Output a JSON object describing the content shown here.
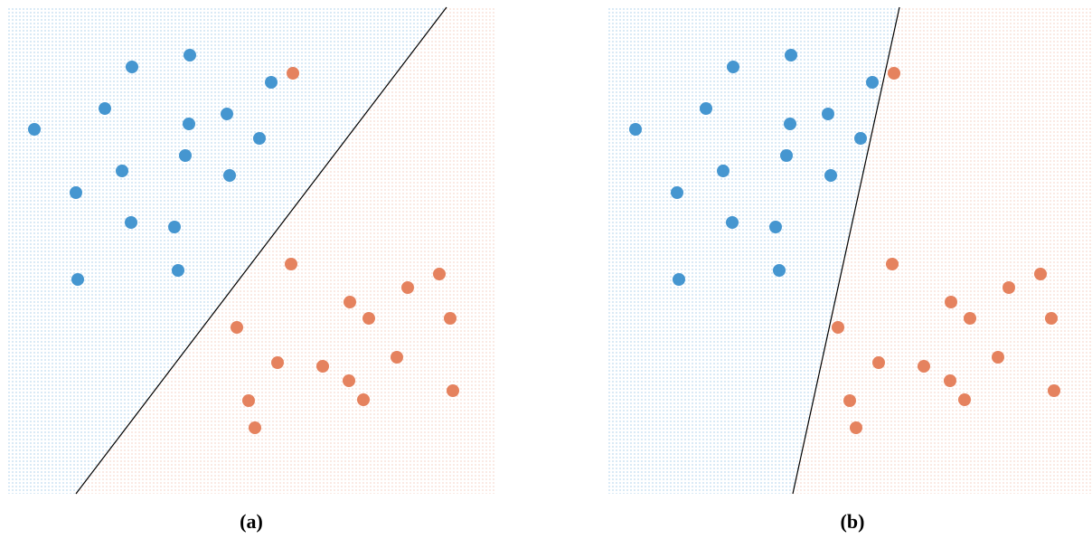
{
  "chart_data": [
    {
      "type": "scatter",
      "title": "(a)",
      "xlim": [
        0,
        540
      ],
      "ylim": [
        0,
        538
      ],
      "series": [
        {
          "color": "#4596d0",
          "x": [
            138,
            202,
            292,
            108,
            201,
            243,
            30,
            279,
            197,
            127,
            246,
            76,
            137,
            185,
            78,
            189
          ],
          "values": [
            472,
            485,
            455,
            426,
            409,
            420,
            403,
            393,
            374,
            357,
            352,
            333,
            300,
            295,
            237,
            247
          ]
        },
        {
          "color": "#e5825e",
          "x": [
            316,
            314,
            478,
            443,
            379,
            400,
            490,
            254,
            299,
            349,
            431,
            378,
            493,
            267,
            394,
            274
          ],
          "values": [
            465,
            254,
            243,
            228,
            212,
            194,
            194,
            184,
            145,
            141,
            151,
            125,
            114,
            103,
            104,
            73
          ]
        }
      ],
      "boundary": {
        "x": [
          76,
          486
        ],
        "values": [
          0,
          538
        ]
      }
    },
    {
      "type": "scatter",
      "title": "(b)",
      "xlim": [
        0,
        540
      ],
      "ylim": [
        0,
        538
      ],
      "series": [
        {
          "color": "#4596d0",
          "x": [
            138,
            202,
            292,
            108,
            201,
            243,
            30,
            279,
            197,
            127,
            246,
            76,
            137,
            185,
            78,
            189
          ],
          "values": [
            472,
            485,
            455,
            426,
            409,
            420,
            403,
            393,
            374,
            357,
            352,
            333,
            300,
            295,
            237,
            247
          ]
        },
        {
          "color": "#e5825e",
          "x": [
            316,
            314,
            478,
            443,
            379,
            400,
            490,
            254,
            299,
            349,
            431,
            378,
            493,
            267,
            394,
            274
          ],
          "values": [
            465,
            254,
            243,
            228,
            212,
            194,
            194,
            184,
            145,
            141,
            151,
            125,
            114,
            103,
            104,
            73
          ]
        }
      ],
      "boundary": {
        "x": [
          204,
          322
        ],
        "values": [
          0,
          538
        ]
      }
    }
  ]
}
